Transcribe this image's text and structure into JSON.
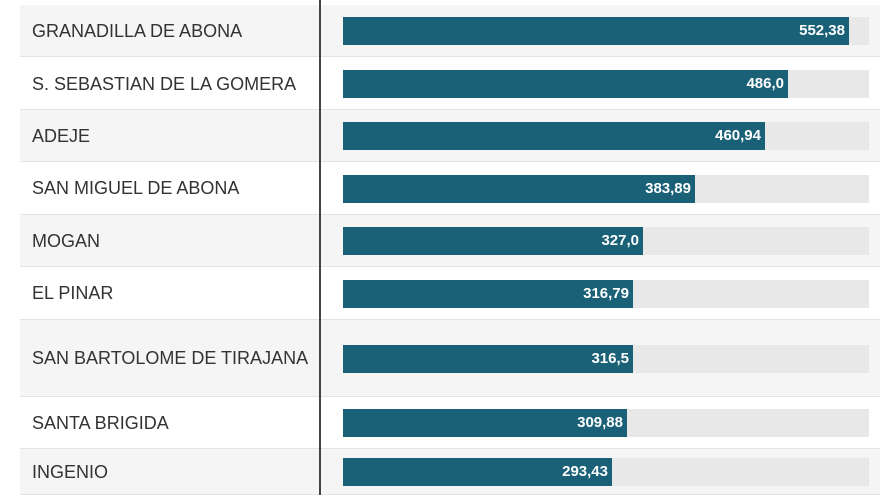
{
  "chart_data": {
    "type": "bar",
    "orientation": "horizontal",
    "categories": [
      "GRANADILLA DE ABONA",
      "S. SEBASTIAN DE LA GOMERA",
      "ADEJE",
      "SAN MIGUEL DE ABONA",
      "MOGAN",
      "EL PINAR",
      "SAN BARTOLOME DE TIRAJANA",
      "SANTA BRIGIDA",
      "INGENIO"
    ],
    "values": [
      552.38,
      486.0,
      460.94,
      383.89,
      327.0,
      316.79,
      316.5,
      309.88,
      293.43
    ],
    "value_labels": [
      "552,38",
      "486,0",
      "460,94",
      "383,89",
      "327,0",
      "316,79",
      "316,5",
      "309,88",
      "293,43"
    ],
    "xlim": [
      0,
      574
    ],
    "grid": false,
    "colors": {
      "bar": "#1a6178",
      "track": "#e8e8e8",
      "row_alt": "#f5f5f5"
    }
  }
}
